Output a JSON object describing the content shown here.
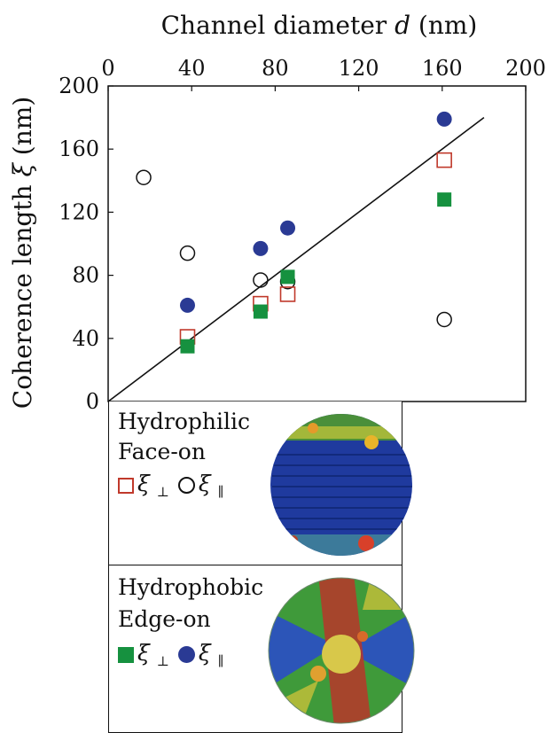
{
  "chart_data": {
    "type": "scatter",
    "xlabel_text": "Channel diameter",
    "xlabel_var": "d",
    "xlabel_unit": "(nm)",
    "ylabel_text": "Coherence length",
    "ylabel_var": "ξ",
    "ylabel_unit": "(nm)",
    "xlim": [
      0,
      200
    ],
    "ylim": [
      0,
      200
    ],
    "x_ticks": [
      0,
      40,
      80,
      120,
      160,
      200
    ],
    "y_ticks": [
      0,
      40,
      80,
      120,
      160,
      200
    ],
    "x_axis_position": "top",
    "grid": false,
    "fit_line": {
      "x": [
        0,
        180
      ],
      "y": [
        0,
        180
      ]
    },
    "series": [
      {
        "name": "hydrophilic ξ⊥",
        "marker": "square-open",
        "color": "#c0392b",
        "x": [
          38,
          73,
          86,
          161
        ],
        "y": [
          41,
          62,
          68,
          153
        ]
      },
      {
        "name": "hydrophilic ξ∥",
        "marker": "circle-open",
        "color": "#111111",
        "x": [
          17,
          38,
          73,
          86,
          161
        ],
        "y": [
          142,
          94,
          77,
          76,
          52
        ]
      },
      {
        "name": "hydrophobic ξ⊥",
        "marker": "square-filled",
        "color": "#16913f",
        "x": [
          38,
          73,
          86,
          161
        ],
        "y": [
          35,
          57,
          79,
          128
        ]
      },
      {
        "name": "hydrophobic ξ∥",
        "marker": "circle-filled",
        "color": "#2a3a94",
        "x": [
          38,
          73,
          86,
          161
        ],
        "y": [
          61,
          97,
          110,
          179
        ]
      }
    ]
  },
  "legend": {
    "top": {
      "line1": "Hydrophilic",
      "line2": "Face-on",
      "sym": "ξ",
      "sub_perp": "⊥",
      "sub_par": "∥"
    },
    "bottom": {
      "line1": "Hydrophobic",
      "line2": "Edge-on",
      "sym": "ξ",
      "sub_perp": "⊥",
      "sub_par": "∥"
    }
  },
  "colors": {
    "axis": "#111111",
    "blue": "#2a3a94",
    "green": "#16913f",
    "red": "#c0392b"
  }
}
